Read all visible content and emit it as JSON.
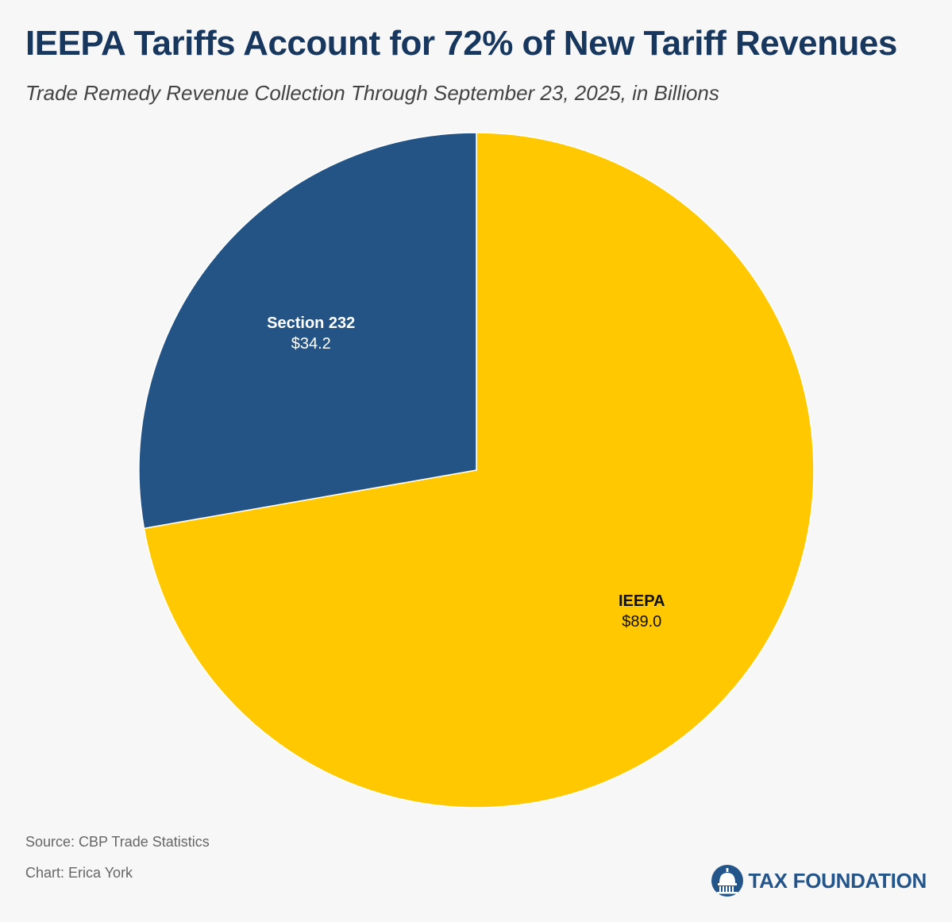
{
  "header": {
    "title": "IEEPA Tariffs Account for 72% of New Tariff Revenues",
    "subtitle": "Trade Remedy Revenue Collection Through September 23, 2025, in Billions"
  },
  "chart_data": {
    "type": "pie",
    "title": "IEEPA Tariffs Account for 72% of New Tariff Revenues",
    "subtitle": "Trade Remedy Revenue Collection Through September 23, 2025, in Billions",
    "slices": [
      {
        "label": "IEEPA",
        "value": 89.0,
        "value_label": "$89.0",
        "color": "#ffc800",
        "text_color": "#111111"
      },
      {
        "label": "Section 232",
        "value": 34.2,
        "value_label": "$34.2",
        "color": "#245485",
        "text_color": "#ffffff"
      }
    ],
    "start_angle": "12 o'clock",
    "direction": "clockwise",
    "legend": "none"
  },
  "footer": {
    "source": "Source: CBP Trade Statistics",
    "credit": "Chart: Erica York",
    "logo_text": "TAX FOUNDATION",
    "logo_icon": "capitol-dome-icon",
    "logo_color": "#24558a"
  }
}
